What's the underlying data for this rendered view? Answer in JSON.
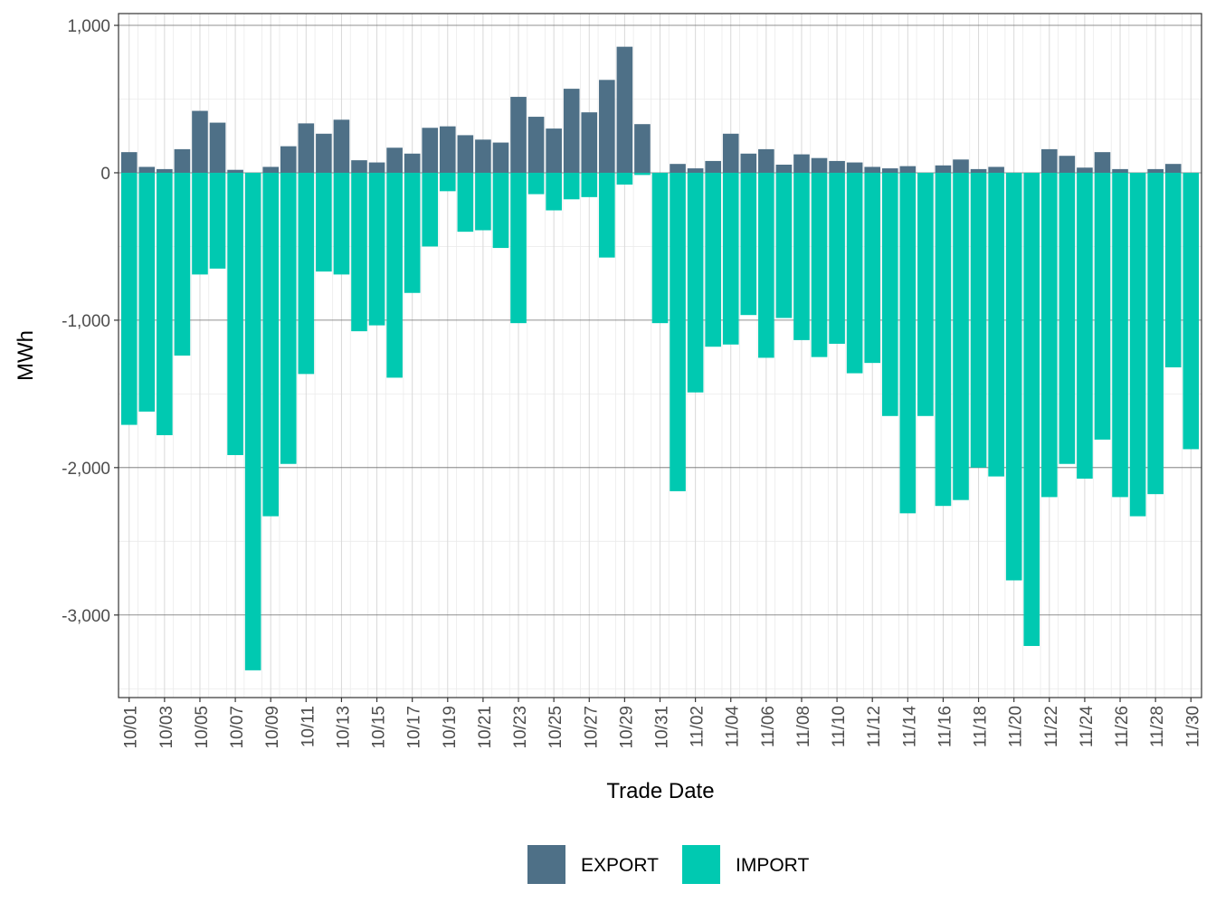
{
  "chart_data": {
    "type": "bar",
    "stacked": true,
    "xlabel": "Trade Date",
    "ylabel": "MWh",
    "ylim": [
      -3560,
      1080
    ],
    "y_ticks": [
      1000,
      0,
      -1000,
      -2000,
      -3000
    ],
    "y_tick_labels": [
      "1,000",
      "0",
      "-1,000",
      "-2,000",
      "-3,000"
    ],
    "grid": true,
    "legend_position": "bottom",
    "categories": [
      "10/01",
      "10/02",
      "10/03",
      "10/04",
      "10/05",
      "10/06",
      "10/07",
      "10/08",
      "10/09",
      "10/10",
      "10/11",
      "10/12",
      "10/13",
      "10/14",
      "10/15",
      "10/16",
      "10/17",
      "10/18",
      "10/19",
      "10/20",
      "10/21",
      "10/22",
      "10/23",
      "10/24",
      "10/25",
      "10/26",
      "10/27",
      "10/28",
      "10/29",
      "10/30",
      "10/31",
      "11/01",
      "11/02",
      "11/03",
      "11/04",
      "11/05",
      "11/06",
      "11/07",
      "11/08",
      "11/09",
      "11/10",
      "11/11",
      "11/12",
      "11/13",
      "11/14",
      "11/15",
      "11/16",
      "11/17",
      "11/18",
      "11/19",
      "11/20",
      "11/21",
      "11/22",
      "11/23",
      "11/24",
      "11/25",
      "11/26",
      "11/27",
      "11/28",
      "11/29",
      "11/30"
    ],
    "x_tick_labels": [
      "10/01",
      "10/03",
      "10/05",
      "10/07",
      "10/09",
      "10/11",
      "10/13",
      "10/15",
      "10/17",
      "10/19",
      "10/21",
      "10/23",
      "10/25",
      "10/27",
      "10/29",
      "10/31",
      "11/02",
      "11/04",
      "11/06",
      "11/08",
      "11/10",
      "11/12",
      "11/14",
      "11/16",
      "11/18",
      "11/20",
      "11/22",
      "11/24",
      "11/26",
      "11/28",
      "11/30"
    ],
    "series": [
      {
        "name": "EXPORT",
        "color": "#4e7087",
        "values": [
          140,
          40,
          25,
          160,
          420,
          340,
          20,
          0,
          40,
          180,
          335,
          265,
          360,
          85,
          70,
          170,
          130,
          305,
          315,
          255,
          225,
          205,
          515,
          380,
          300,
          570,
          410,
          630,
          855,
          330,
          0,
          60,
          30,
          80,
          265,
          130,
          160,
          55,
          125,
          100,
          80,
          70,
          40,
          30,
          45,
          0,
          50,
          90,
          25,
          40,
          0,
          0,
          160,
          115,
          35,
          140,
          25,
          0,
          25,
          60,
          0
        ]
      },
      {
        "name": "IMPORT",
        "color": "#00c9b1",
        "values": [
          -1710,
          -1620,
          -1780,
          -1240,
          -690,
          -650,
          -1915,
          -3375,
          -2330,
          -1975,
          -1365,
          -670,
          -690,
          -1075,
          -1035,
          -1390,
          -815,
          -500,
          -125,
          -400,
          -390,
          -510,
          -1020,
          -145,
          -255,
          -180,
          -165,
          -575,
          -80,
          -15,
          -1020,
          -2160,
          -1490,
          -1180,
          -1165,
          -965,
          -1255,
          -985,
          -1135,
          -1250,
          -1160,
          -1360,
          -1290,
          -1650,
          -2310,
          -1650,
          -2260,
          -2220,
          -2000,
          -2060,
          -2765,
          -3210,
          -2200,
          -1975,
          -2075,
          -1810,
          -2200,
          -2330,
          -2180,
          -1320,
          -1875
        ]
      }
    ]
  }
}
